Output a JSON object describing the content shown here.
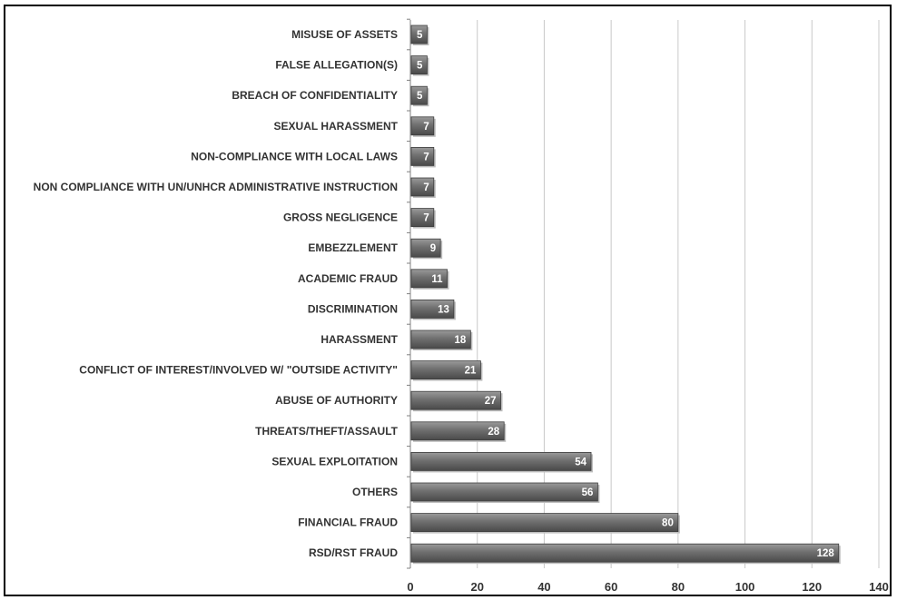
{
  "chart_data": {
    "type": "bar",
    "orientation": "horizontal",
    "categories": [
      "MISUSE OF ASSETS",
      "FALSE ALLEGATION(S)",
      "BREACH OF CONFIDENTIALITY",
      "SEXUAL HARASSMENT",
      "NON-COMPLIANCE WITH LOCAL LAWS",
      "NON COMPLIANCE WITH UN/UNHCR ADMINISTRATIVE INSTRUCTION",
      "GROSS NEGLIGENCE",
      "EMBEZZLEMENT",
      "ACADEMIC FRAUD",
      "DISCRIMINATION",
      "HARASSMENT",
      "CONFLICT OF INTEREST/INVOLVED W/ \"OUTSIDE ACTIVITY\"",
      "ABUSE OF AUTHORITY",
      "THREATS/THEFT/ASSAULT",
      "SEXUAL EXPLOITATION",
      "OTHERS",
      "FINANCIAL FRAUD",
      "RSD/RST FRAUD"
    ],
    "values": [
      5,
      5,
      5,
      7,
      7,
      7,
      7,
      9,
      11,
      13,
      18,
      21,
      27,
      28,
      54,
      56,
      80,
      128
    ],
    "xlim": [
      0,
      140
    ],
    "xticks": [
      "0",
      "20",
      "40",
      "60",
      "80",
      "100",
      "120",
      "140"
    ],
    "grid": "vertical",
    "bar_color": "#6f6f6f",
    "data_labels": true,
    "legend": "none"
  }
}
